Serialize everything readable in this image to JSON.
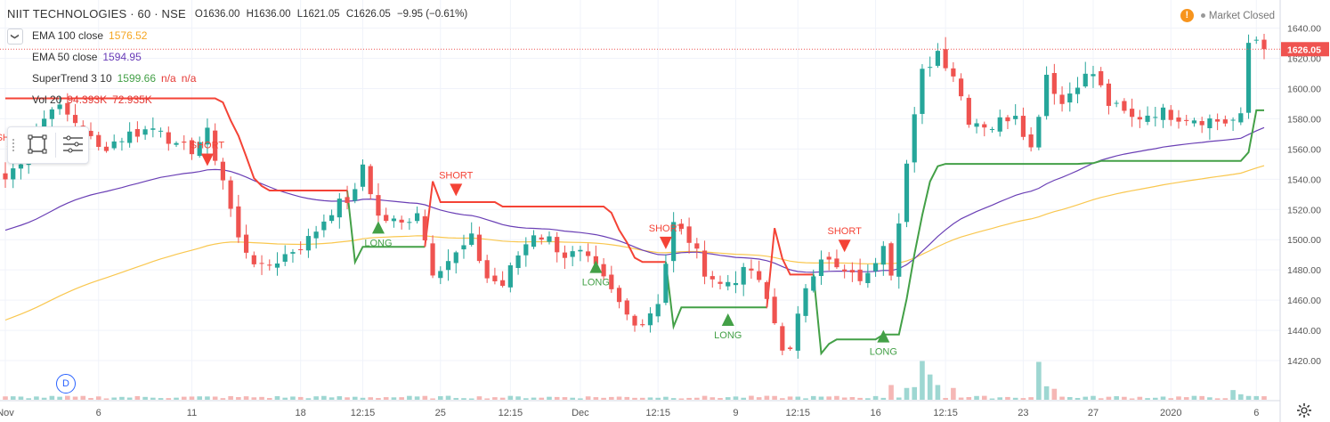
{
  "header": {
    "symbol_title": "NIIT TECHNOLOGIES · 60 · NSE",
    "open": "O1636.00",
    "high": "H1636.00",
    "low": "L1621.05",
    "close": "C1626.05",
    "change": "−9.95 (−0.61%)"
  },
  "collapse_glyph": "❯",
  "indicators": [
    {
      "name": "EMA 100 close",
      "values": [
        "1576.52"
      ],
      "colors": [
        "#f5a623"
      ]
    },
    {
      "name": "EMA 50 close",
      "values": [
        "1594.95"
      ],
      "colors": [
        "#673ab7"
      ]
    },
    {
      "name": "SuperTrend 3 10",
      "values": [
        "1599.66",
        "n/a",
        "n/a"
      ],
      "colors": [
        "#43a047",
        "#e53935",
        "#e53935"
      ]
    },
    {
      "name": "Vol 20",
      "values": [
        "94.393K",
        "72.935K"
      ],
      "colors": [
        "#e53935",
        "#e53935"
      ]
    }
  ],
  "market_status": {
    "warn_glyph": "!",
    "label": "Market Closed"
  },
  "d_badge": "D",
  "colors": {
    "up": "#26a69a",
    "down": "#ef5350",
    "ema100": "#f9c74f",
    "ema50": "#6a3fb5",
    "st_up": "#43a047",
    "st_down": "#f44336",
    "vol_up": "#9ed7d2",
    "vol_down": "#f5b7b5",
    "last_price_bg": "#ef5350",
    "grid": "#f0f3fa",
    "axis_text": "#555"
  },
  "chart_data": {
    "type": "candlestick",
    "title": "NIIT TECHNOLOGIES · 60 · NSE",
    "y_range": [
      1410,
      1648
    ],
    "y_ticks": [
      1420,
      1440,
      1460,
      1480,
      1500,
      1520,
      1540,
      1560,
      1580,
      1600,
      1620,
      1640
    ],
    "y_tick_labels": [
      "1420.00",
      "1440.00",
      "1460.00",
      "1480.00",
      "1500.00",
      "1520.00",
      "1540.00",
      "1560.00",
      "1580.00",
      "1600.00",
      "1620.00",
      "1640.00"
    ],
    "last_price": 1626.05,
    "last_price_label": "1626.05",
    "x_labels": [
      {
        "bar": 0,
        "text": "Nov"
      },
      {
        "bar": 12,
        "text": "6"
      },
      {
        "bar": 24,
        "text": "11"
      },
      {
        "bar": 38,
        "text": "18"
      },
      {
        "bar": 46,
        "text": "12:15"
      },
      {
        "bar": 56,
        "text": "25"
      },
      {
        "bar": 65,
        "text": "12:15"
      },
      {
        "bar": 74,
        "text": "Dec"
      },
      {
        "bar": 84,
        "text": "12:15"
      },
      {
        "bar": 94,
        "text": "9"
      },
      {
        "bar": 102,
        "text": "12:15"
      },
      {
        "bar": 112,
        "text": "16"
      },
      {
        "bar": 121,
        "text": "12:15"
      },
      {
        "bar": 131,
        "text": "23"
      },
      {
        "bar": 140,
        "text": "27"
      },
      {
        "bar": 150,
        "text": "2020"
      },
      {
        "bar": 161,
        "text": "6"
      }
    ],
    "n_bars": 163,
    "anchors": [
      [
        0,
        1540
      ],
      [
        3,
        1560
      ],
      [
        6,
        1590
      ],
      [
        9,
        1578
      ],
      [
        12,
        1560
      ],
      [
        16,
        1570
      ],
      [
        20,
        1575
      ],
      [
        22,
        1560
      ],
      [
        24,
        1560
      ],
      [
        26,
        1570
      ],
      [
        28,
        1540
      ],
      [
        30,
        1500
      ],
      [
        33,
        1480
      ],
      [
        36,
        1490
      ],
      [
        39,
        1500
      ],
      [
        42,
        1520
      ],
      [
        45,
        1530
      ],
      [
        46,
        1550
      ],
      [
        48,
        1515
      ],
      [
        51,
        1510
      ],
      [
        53,
        1520
      ],
      [
        55,
        1480
      ],
      [
        58,
        1490
      ],
      [
        60,
        1500
      ],
      [
        62,
        1475
      ],
      [
        64,
        1470
      ],
      [
        66,
        1490
      ],
      [
        68,
        1505
      ],
      [
        70,
        1500
      ],
      [
        72,
        1490
      ],
      [
        74,
        1490
      ],
      [
        76,
        1480
      ],
      [
        78,
        1465
      ],
      [
        80,
        1450
      ],
      [
        82,
        1445
      ],
      [
        84,
        1460
      ],
      [
        86,
        1510
      ],
      [
        88,
        1500
      ],
      [
        90,
        1480
      ],
      [
        92,
        1470
      ],
      [
        94,
        1475
      ],
      [
        96,
        1480
      ],
      [
        98,
        1460
      ],
      [
        100,
        1430
      ],
      [
        101,
        1425
      ],
      [
        103,
        1470
      ],
      [
        105,
        1490
      ],
      [
        107,
        1480
      ],
      [
        109,
        1475
      ],
      [
        111,
        1475
      ],
      [
        113,
        1500
      ],
      [
        114,
        1480
      ],
      [
        116,
        1550
      ],
      [
        118,
        1610
      ],
      [
        120,
        1625
      ],
      [
        122,
        1610
      ],
      [
        124,
        1580
      ],
      [
        127,
        1575
      ],
      [
        130,
        1585
      ],
      [
        132,
        1560
      ],
      [
        134,
        1610
      ],
      [
        136,
        1590
      ],
      [
        138,
        1605
      ],
      [
        140,
        1610
      ],
      [
        142,
        1590
      ],
      [
        145,
        1580
      ],
      [
        148,
        1585
      ],
      [
        151,
        1582
      ],
      [
        154,
        1580
      ],
      [
        157,
        1578
      ],
      [
        159,
        1580
      ],
      [
        160,
        1630
      ],
      [
        162,
        1636
      ]
    ],
    "volume_max": 110000,
    "volume_spikes": {
      "114": 35000,
      "116": 28000,
      "117": 30000,
      "118": 92000,
      "119": 60000,
      "120": 35000,
      "122": 28000,
      "133": 90000,
      "134": 32000,
      "135": 26000,
      "158": 23000,
      "159": 13000
    },
    "signals": [
      {
        "type": "short",
        "bar": 1,
        "price": 1562,
        "label": "SHORT"
      },
      {
        "type": "short",
        "bar": 26,
        "price": 1557,
        "label": "SHORT"
      },
      {
        "type": "long",
        "bar": 48,
        "price": 1504,
        "label": "LONG"
      },
      {
        "type": "short",
        "bar": 58,
        "price": 1537,
        "label": "SHORT"
      },
      {
        "type": "long",
        "bar": 76,
        "price": 1478,
        "label": "LONG"
      },
      {
        "type": "short",
        "bar": 85,
        "price": 1502,
        "label": "SHORT"
      },
      {
        "type": "long",
        "bar": 93,
        "price": 1443,
        "label": "LONG"
      },
      {
        "type": "short",
        "bar": 108,
        "price": 1500,
        "label": "SHORT"
      },
      {
        "type": "long",
        "bar": 113,
        "price": 1432,
        "label": "LONG"
      }
    ]
  }
}
